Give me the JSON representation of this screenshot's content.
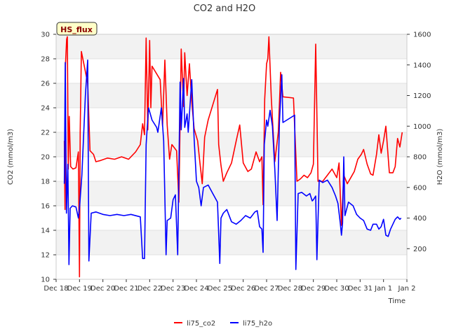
{
  "chart_data": {
    "type": "line",
    "title": "CO2 and H2O",
    "xlabel": "Time",
    "ylabel_left": "CO2 (mmol/m3)",
    "ylabel_right": "H2O (mmol/m3)",
    "site_badge": "HS_flux",
    "x_ticks": [
      "Dec 18",
      "Dec 19",
      "Dec 20",
      "Dec 21",
      "Dec 22",
      "Dec 23",
      "Dec 24",
      "Dec 25",
      "Dec 26",
      "Dec 27",
      "Dec 28",
      "Dec 29",
      "Dec 30",
      "Dec 31",
      "Jan 1",
      "Jan 2"
    ],
    "x_range_days": [
      0,
      15
    ],
    "y_left_ticks": [
      10,
      12,
      14,
      16,
      18,
      20,
      22,
      24,
      26,
      28,
      30
    ],
    "y_left_range": [
      10,
      30
    ],
    "y_right_ticks": [
      200,
      400,
      600,
      800,
      1000,
      1200,
      1400,
      1600
    ],
    "y_right_range": [
      0,
      1600
    ],
    "grid": "horizontal bands",
    "legend_position": "bottom-center",
    "series": [
      {
        "name": "li75_co2",
        "axis": "left",
        "color": "#ff0000",
        "points": [
          [
            0.35,
            21.3
          ],
          [
            0.38,
            15.7
          ],
          [
            0.4,
            27.5
          ],
          [
            0.45,
            29.6
          ],
          [
            0.48,
            29.8
          ],
          [
            0.52,
            19.0
          ],
          [
            0.56,
            23.3
          ],
          [
            0.62,
            19.2
          ],
          [
            0.72,
            19.0
          ],
          [
            0.85,
            19.1
          ],
          [
            0.95,
            20.4
          ],
          [
            1.0,
            10.2
          ],
          [
            1.03,
            22.0
          ],
          [
            1.08,
            28.6
          ],
          [
            1.35,
            26.0
          ],
          [
            1.45,
            20.5
          ],
          [
            1.6,
            20.2
          ],
          [
            1.7,
            19.6
          ],
          [
            1.9,
            19.7
          ],
          [
            2.2,
            19.9
          ],
          [
            2.5,
            19.8
          ],
          [
            2.8,
            20.0
          ],
          [
            3.1,
            19.8
          ],
          [
            3.4,
            20.4
          ],
          [
            3.6,
            21.0
          ],
          [
            3.7,
            22.7
          ],
          [
            3.78,
            21.8
          ],
          [
            3.85,
            29.7
          ],
          [
            3.92,
            22.2
          ],
          [
            4.0,
            29.5
          ],
          [
            4.05,
            24.0
          ],
          [
            4.1,
            27.4
          ],
          [
            4.45,
            26.3
          ],
          [
            4.55,
            22.5
          ],
          [
            4.65,
            27.9
          ],
          [
            4.75,
            22.6
          ],
          [
            4.85,
            19.8
          ],
          [
            4.95,
            21.0
          ],
          [
            5.15,
            20.5
          ],
          [
            5.25,
            16.3
          ],
          [
            5.35,
            28.8
          ],
          [
            5.45,
            24.1
          ],
          [
            5.5,
            28.5
          ],
          [
            5.6,
            25.0
          ],
          [
            5.7,
            27.6
          ],
          [
            5.8,
            24.5
          ],
          [
            5.9,
            22.3
          ],
          [
            6.05,
            21.3
          ],
          [
            6.15,
            19.5
          ],
          [
            6.25,
            17.8
          ],
          [
            6.35,
            21.6
          ],
          [
            6.5,
            23.0
          ],
          [
            6.9,
            25.5
          ],
          [
            6.95,
            21.0
          ],
          [
            7.05,
            19.3
          ],
          [
            7.15,
            18.0
          ],
          [
            7.3,
            18.7
          ],
          [
            7.5,
            19.5
          ],
          [
            7.7,
            21.3
          ],
          [
            7.85,
            22.6
          ],
          [
            8.0,
            19.5
          ],
          [
            8.2,
            18.8
          ],
          [
            8.35,
            19.0
          ],
          [
            8.55,
            20.4
          ],
          [
            8.7,
            19.6
          ],
          [
            8.8,
            20.0
          ],
          [
            8.85,
            16.1
          ],
          [
            8.92,
            24.7
          ],
          [
            9.0,
            27.6
          ],
          [
            9.05,
            28.0
          ],
          [
            9.1,
            29.8
          ],
          [
            9.2,
            24.8
          ],
          [
            9.35,
            19.6
          ],
          [
            9.5,
            22.0
          ],
          [
            9.6,
            26.9
          ],
          [
            9.7,
            24.9
          ],
          [
            10.15,
            24.8
          ],
          [
            10.3,
            18.0
          ],
          [
            10.45,
            18.2
          ],
          [
            10.6,
            18.5
          ],
          [
            10.75,
            18.3
          ],
          [
            10.9,
            18.7
          ],
          [
            11.0,
            19.4
          ],
          [
            11.1,
            29.2
          ],
          [
            11.2,
            18.0
          ],
          [
            11.4,
            18.0
          ],
          [
            11.6,
            18.5
          ],
          [
            11.8,
            19.0
          ],
          [
            12.0,
            18.3
          ],
          [
            12.1,
            19.5
          ],
          [
            12.2,
            14.4
          ],
          [
            12.3,
            18.5
          ],
          [
            12.45,
            17.8
          ],
          [
            12.6,
            18.3
          ],
          [
            12.75,
            18.8
          ],
          [
            12.9,
            19.8
          ],
          [
            13.05,
            20.2
          ],
          [
            13.15,
            20.6
          ],
          [
            13.3,
            19.4
          ],
          [
            13.45,
            18.6
          ],
          [
            13.55,
            18.5
          ],
          [
            13.7,
            20.2
          ],
          [
            13.8,
            21.8
          ],
          [
            13.9,
            20.3
          ],
          [
            14.0,
            21.3
          ],
          [
            14.1,
            22.5
          ],
          [
            14.25,
            18.7
          ],
          [
            14.4,
            18.7
          ],
          [
            14.5,
            19.2
          ],
          [
            14.6,
            21.5
          ],
          [
            14.7,
            20.8
          ],
          [
            14.8,
            22.0
          ]
        ]
      },
      {
        "name": "li75_h2o",
        "axis": "left",
        "color": "#0000ff",
        "points": [
          [
            0.35,
            17.8
          ],
          [
            0.39,
            27.7
          ],
          [
            0.44,
            15.4
          ],
          [
            0.5,
            19.4
          ],
          [
            0.55,
            11.2
          ],
          [
            0.6,
            15.8
          ],
          [
            0.7,
            16.0
          ],
          [
            0.85,
            15.9
          ],
          [
            0.95,
            15.0
          ],
          [
            1.0,
            15.8
          ],
          [
            1.1,
            18.5
          ],
          [
            1.25,
            25.0
          ],
          [
            1.35,
            27.9
          ],
          [
            1.4,
            11.5
          ],
          [
            1.5,
            15.4
          ],
          [
            1.7,
            15.5
          ],
          [
            2.0,
            15.3
          ],
          [
            2.3,
            15.2
          ],
          [
            2.6,
            15.3
          ],
          [
            2.9,
            15.2
          ],
          [
            3.2,
            15.3
          ],
          [
            3.6,
            15.1
          ],
          [
            3.7,
            11.7
          ],
          [
            3.78,
            11.7
          ],
          [
            3.85,
            21.0
          ],
          [
            3.95,
            24.0
          ],
          [
            4.1,
            23.0
          ],
          [
            4.3,
            22.4
          ],
          [
            4.35,
            22.0
          ],
          [
            4.5,
            24.0
          ],
          [
            4.6,
            21.3
          ],
          [
            4.7,
            12.0
          ],
          [
            4.75,
            14.8
          ],
          [
            4.9,
            15.0
          ],
          [
            5.0,
            16.5
          ],
          [
            5.1,
            16.9
          ],
          [
            5.2,
            12.0
          ],
          [
            5.3,
            26.1
          ],
          [
            5.35,
            22.2
          ],
          [
            5.45,
            26.4
          ],
          [
            5.5,
            22.4
          ],
          [
            5.6,
            23.5
          ],
          [
            5.65,
            22.0
          ],
          [
            5.8,
            26.3
          ],
          [
            5.9,
            21.5
          ],
          [
            6.0,
            18.0
          ],
          [
            6.1,
            17.5
          ],
          [
            6.2,
            16.0
          ],
          [
            6.3,
            17.5
          ],
          [
            6.5,
            17.7
          ],
          [
            6.7,
            17.0
          ],
          [
            6.9,
            16.3
          ],
          [
            7.0,
            11.3
          ],
          [
            7.05,
            15.0
          ],
          [
            7.15,
            15.4
          ],
          [
            7.3,
            15.7
          ],
          [
            7.5,
            14.7
          ],
          [
            7.7,
            14.5
          ],
          [
            7.9,
            14.8
          ],
          [
            8.1,
            15.2
          ],
          [
            8.3,
            15.0
          ],
          [
            8.5,
            15.5
          ],
          [
            8.6,
            15.6
          ],
          [
            8.7,
            14.3
          ],
          [
            8.8,
            14.1
          ],
          [
            8.85,
            12.2
          ],
          [
            8.9,
            21.0
          ],
          [
            9.0,
            23.0
          ],
          [
            9.05,
            22.5
          ],
          [
            9.15,
            23.8
          ],
          [
            9.25,
            22.5
          ],
          [
            9.35,
            19.0
          ],
          [
            9.45,
            14.8
          ],
          [
            9.55,
            22.8
          ],
          [
            9.65,
            26.7
          ],
          [
            9.7,
            22.8
          ],
          [
            10.2,
            23.4
          ],
          [
            10.25,
            10.8
          ],
          [
            10.35,
            17.0
          ],
          [
            10.5,
            17.1
          ],
          [
            10.7,
            16.8
          ],
          [
            10.85,
            17.0
          ],
          [
            10.95,
            16.4
          ],
          [
            11.0,
            16.5
          ],
          [
            11.1,
            16.8
          ],
          [
            11.15,
            11.6
          ],
          [
            11.25,
            18.1
          ],
          [
            11.4,
            17.9
          ],
          [
            11.6,
            18.1
          ],
          [
            11.8,
            17.5
          ],
          [
            11.95,
            16.8
          ],
          [
            12.05,
            16.2
          ],
          [
            12.15,
            14.6
          ],
          [
            12.2,
            13.6
          ],
          [
            12.25,
            14.6
          ],
          [
            12.3,
            20.0
          ],
          [
            12.35,
            15.2
          ],
          [
            12.5,
            16.3
          ],
          [
            12.7,
            16.0
          ],
          [
            12.85,
            15.3
          ],
          [
            13.0,
            15.0
          ],
          [
            13.15,
            14.8
          ],
          [
            13.3,
            14.1
          ],
          [
            13.45,
            14.0
          ],
          [
            13.55,
            14.5
          ],
          [
            13.7,
            14.5
          ],
          [
            13.8,
            14.1
          ],
          [
            13.9,
            14.3
          ],
          [
            14.0,
            14.9
          ],
          [
            14.1,
            13.6
          ],
          [
            14.2,
            13.5
          ],
          [
            14.3,
            14.1
          ],
          [
            14.4,
            14.5
          ],
          [
            14.5,
            14.9
          ],
          [
            14.6,
            15.1
          ],
          [
            14.7,
            14.9
          ],
          [
            14.75,
            15.0
          ]
        ]
      }
    ]
  }
}
